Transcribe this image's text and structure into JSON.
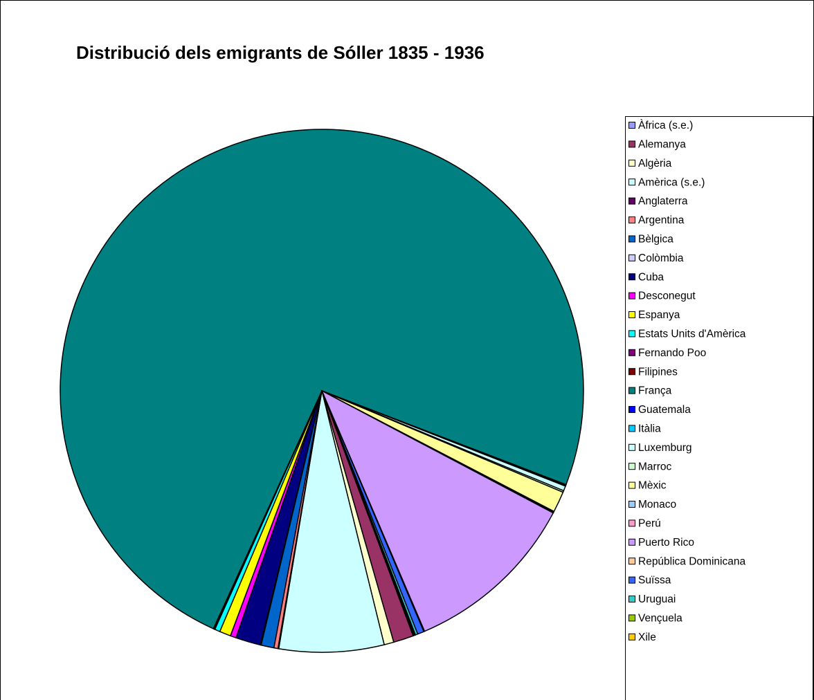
{
  "chart_data": {
    "type": "pie",
    "title": "Distribució dels emigrants de Sóller 1835 - 1936",
    "categories": [
      "Àfrica (s.e.)",
      "Alemanya",
      "Algèria",
      "Amèrica (s.e.)",
      "Anglaterra",
      "Argentina",
      "Bèlgica",
      "Colòmbia",
      "Cuba",
      "Desconegut",
      "Espanya",
      "Estats Units d'Amèrica",
      "Fernando Poo",
      "Filipines",
      "França",
      "Guatemala",
      "Itàlia",
      "Luxemburg",
      "Marroc",
      "Mèxic",
      "Monaco",
      "Perú",
      "Puerto Rico",
      "República Dominicana",
      "Suïssa",
      "Uruguai",
      "Vençuela",
      "Xile"
    ],
    "values": [
      0.05,
      1.25,
      0.6,
      6.5,
      0.05,
      0.25,
      0.8,
      0.05,
      1.55,
      0.36,
      0.7,
      0.33,
      0.05,
      0.05,
      74.4,
      0.05,
      0.05,
      0.3,
      0.1,
      1.3,
      0.05,
      0.05,
      10.9,
      0.05,
      0.4,
      0.15,
      0.05,
      0.05
    ],
    "colors": [
      "#9999FF",
      "#993366",
      "#FFFFCC",
      "#CCFFFF",
      "#660066",
      "#FF8080",
      "#0066CC",
      "#CCCCFF",
      "#000080",
      "#FF00FF",
      "#FFFF00",
      "#00FFFF",
      "#800080",
      "#800000",
      "#008080",
      "#0000FF",
      "#00CCFF",
      "#CCFFFF",
      "#CCFFCC",
      "#FFFF99",
      "#99CCFF",
      "#FF99CC",
      "#CC99FF",
      "#FFCC99",
      "#3366FF",
      "#33CCCC",
      "#99CC00",
      "#FFCC00"
    ],
    "legend": "right"
  }
}
